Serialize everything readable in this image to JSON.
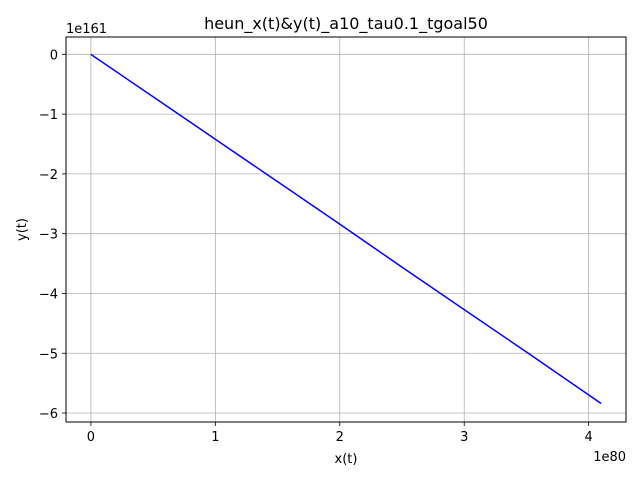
{
  "chart_data": {
    "type": "line",
    "title": "heun_x(t)&y(t)_a10_tau0.1_tgoal50",
    "xlabel": "x(t)",
    "ylabel": "y(t)",
    "x_offset_label": "1e80",
    "y_offset_label": "1e161",
    "x_ticks": [
      0,
      1,
      2,
      3,
      4
    ],
    "x_tick_labels": [
      "0",
      "1",
      "2",
      "3",
      "4"
    ],
    "y_ticks": [
      0,
      -1,
      -2,
      -3,
      -4,
      -5,
      -6
    ],
    "y_tick_labels": [
      "0",
      "−1",
      "−2",
      "−3",
      "−4",
      "−5",
      "−6"
    ],
    "xlim": [
      -0.2,
      4.3
    ],
    "ylim": [
      -6.15,
      0.29
    ],
    "grid": true,
    "series": [
      {
        "color": "#0000ff",
        "x": [
          0,
          0.5,
          1.0,
          1.5,
          2.0,
          2.5,
          3.0,
          3.5,
          4.1
        ],
        "y": [
          0,
          -0.71,
          -1.42,
          -2.13,
          -2.84,
          -3.56,
          -4.27,
          -4.98,
          -5.84
        ]
      }
    ]
  }
}
